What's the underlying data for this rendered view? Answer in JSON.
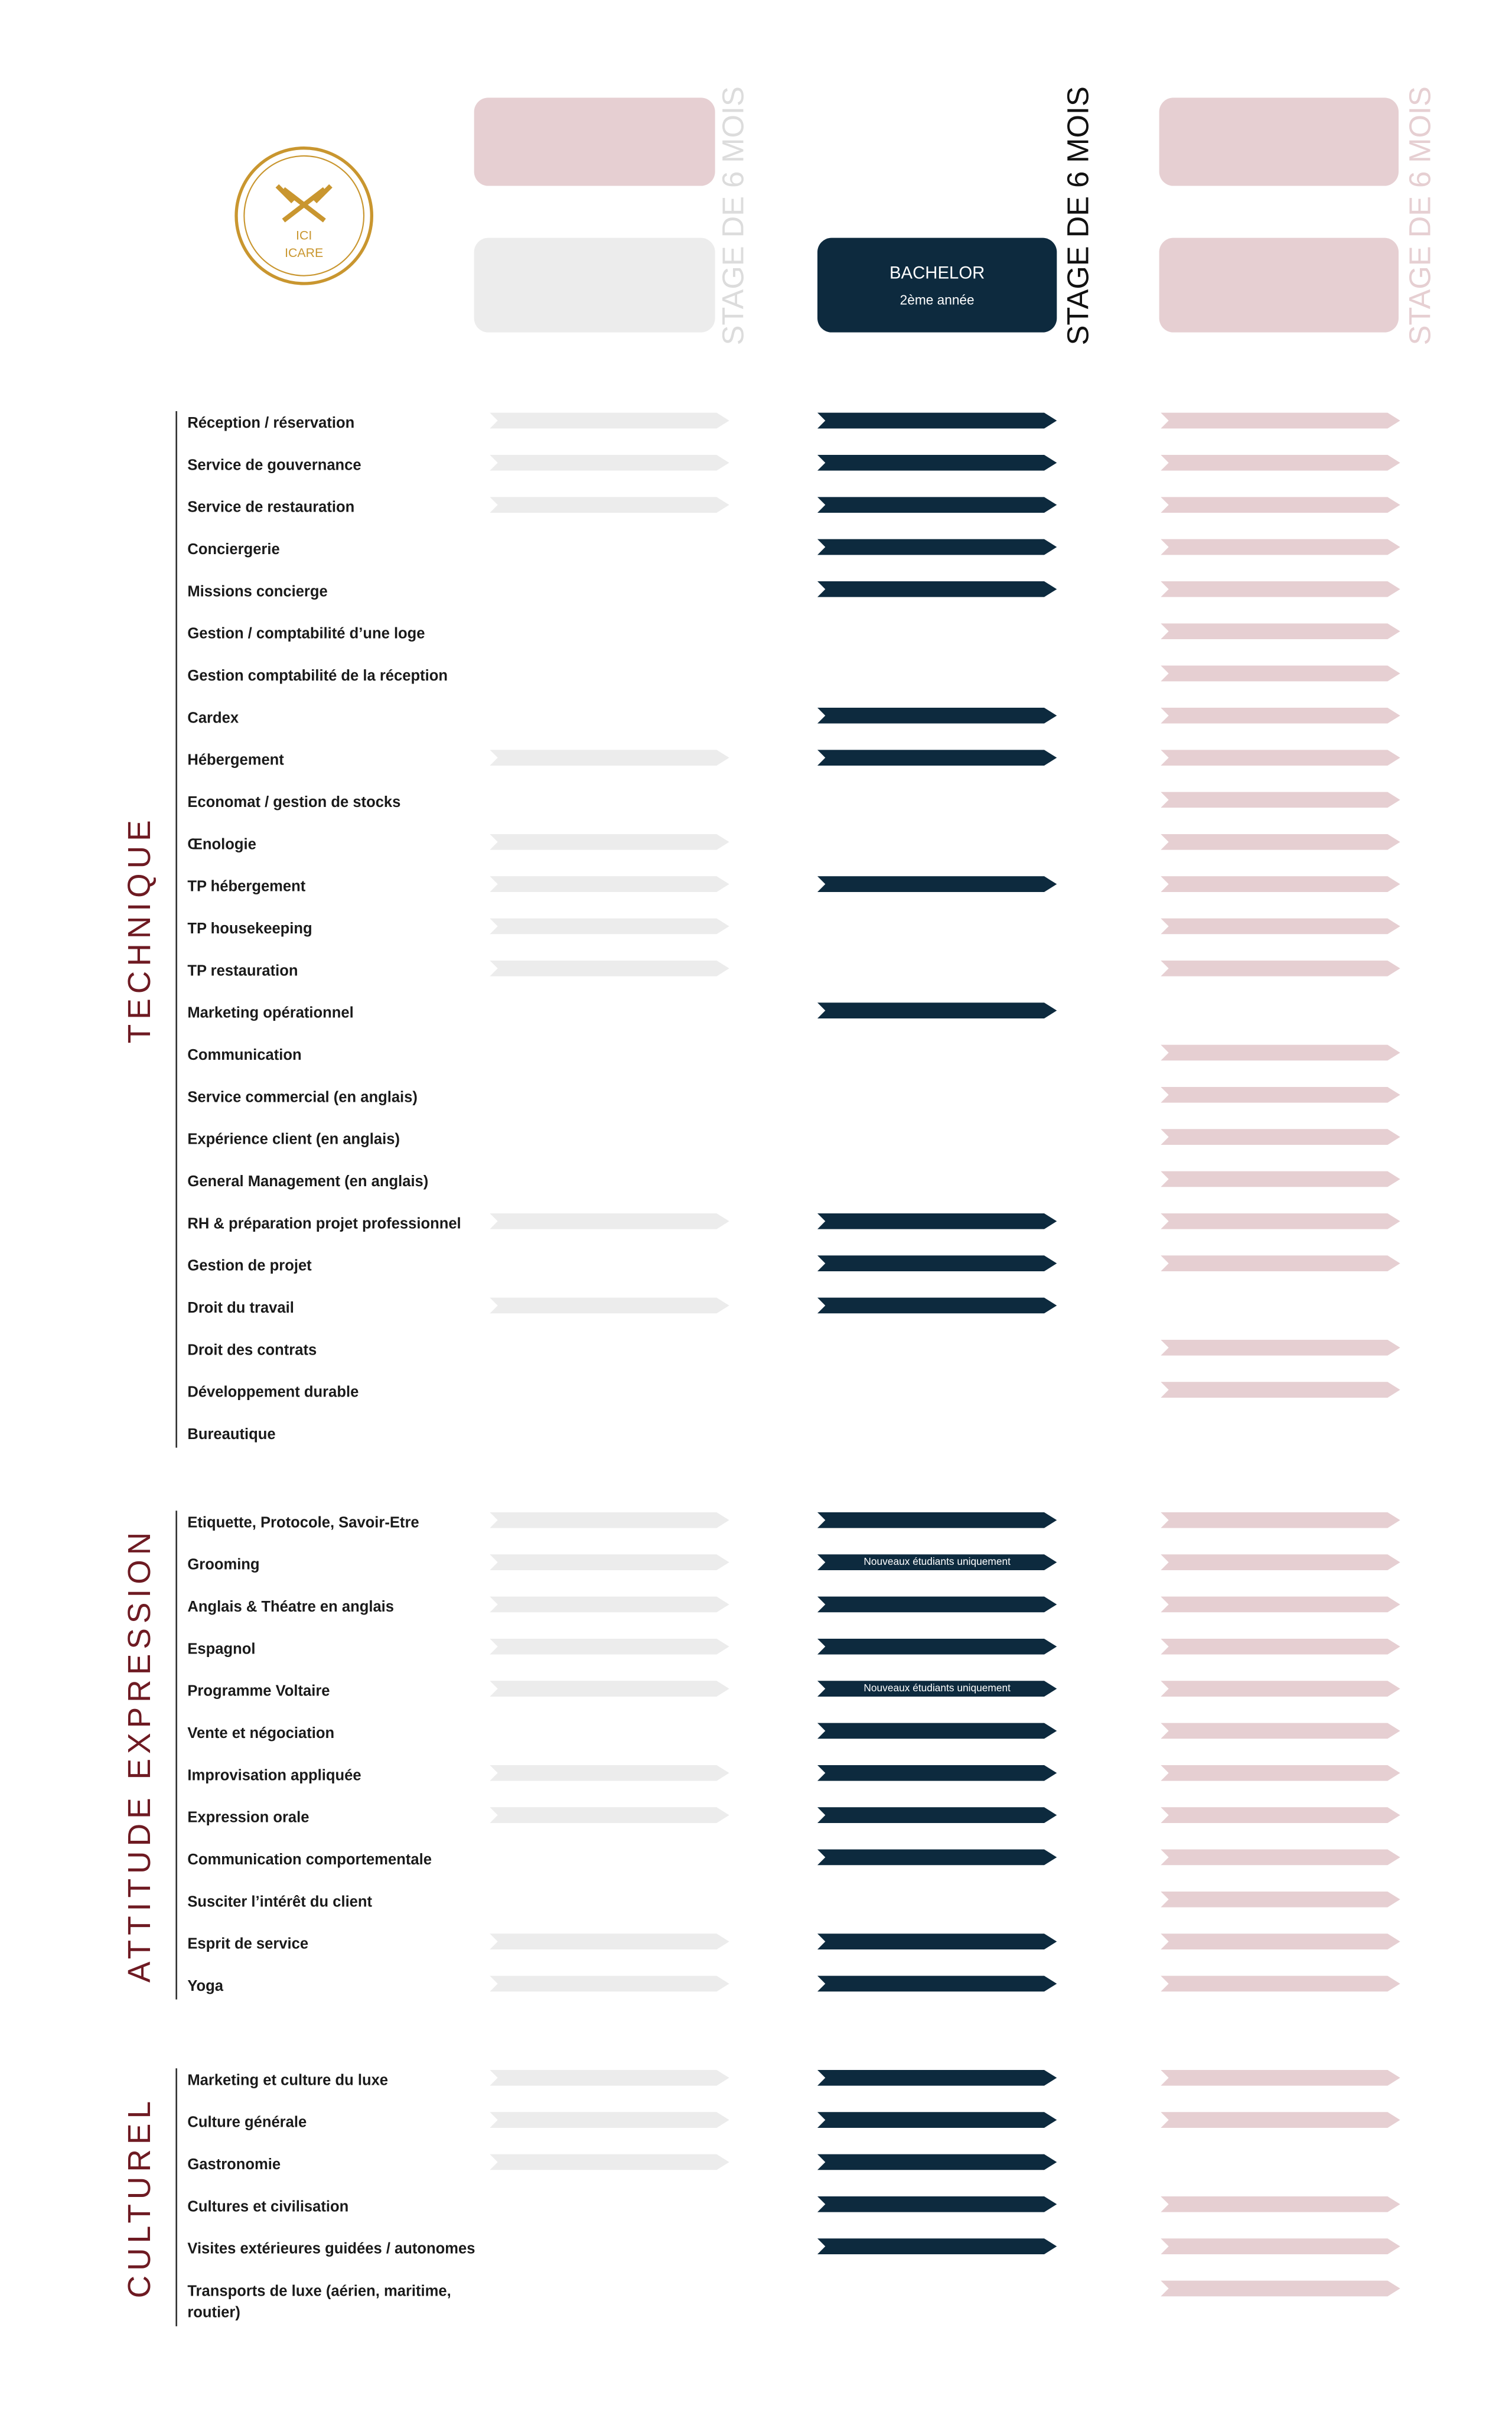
{
  "logo": [
    "ICI",
    "ICARE"
  ],
  "header": {
    "box_title": "BACHELOR",
    "box_subtitle": "2ème année",
    "stage": [
      "STAGE DE 6 MOIS",
      "STAGE DE 6 MOIS",
      "STAGE DE 6 MOIS"
    ]
  },
  "sections": [
    {
      "title": "TECHNIQUE",
      "rows": [
        {
          "label": "Réception / réservation",
          "cols": [
            true,
            true,
            true
          ]
        },
        {
          "label": "Service de gouvernance",
          "cols": [
            true,
            true,
            true
          ]
        },
        {
          "label": "Service de restauration",
          "cols": [
            true,
            true,
            true
          ]
        },
        {
          "label": "Conciergerie",
          "cols": [
            false,
            true,
            true
          ]
        },
        {
          "label": "Missions concierge",
          "cols": [
            false,
            true,
            true
          ]
        },
        {
          "label": "Gestion / comptabilité d’une loge",
          "cols": [
            false,
            false,
            true
          ]
        },
        {
          "label": "Gestion comptabilité de la réception",
          "cols": [
            false,
            false,
            true
          ]
        },
        {
          "label": "Cardex",
          "cols": [
            false,
            true,
            true
          ]
        },
        {
          "label": "Hébergement",
          "cols": [
            true,
            true,
            true
          ]
        },
        {
          "label": "Economat / gestion de stocks",
          "cols": [
            false,
            false,
            true
          ]
        },
        {
          "label": "Œnologie",
          "cols": [
            true,
            false,
            true
          ]
        },
        {
          "label": "TP hébergement",
          "cols": [
            true,
            true,
            true
          ]
        },
        {
          "label": "TP housekeeping",
          "cols": [
            true,
            false,
            true
          ]
        },
        {
          "label": "TP restauration",
          "cols": [
            true,
            false,
            true
          ]
        },
        {
          "label": "Marketing opérationnel",
          "cols": [
            false,
            true,
            false
          ]
        },
        {
          "label": "Communication",
          "cols": [
            false,
            false,
            true
          ]
        },
        {
          "label": "Service commercial (en anglais)",
          "cols": [
            false,
            false,
            true
          ]
        },
        {
          "label": "Expérience client (en anglais)",
          "cols": [
            false,
            false,
            true
          ]
        },
        {
          "label": "General Management (en anglais)",
          "cols": [
            false,
            false,
            true
          ]
        },
        {
          "label": "RH & préparation projet professionnel",
          "cols": [
            true,
            true,
            true
          ]
        },
        {
          "label": "Gestion de projet",
          "cols": [
            false,
            true,
            true
          ]
        },
        {
          "label": "Droit du travail",
          "cols": [
            true,
            true,
            false
          ]
        },
        {
          "label": "Droit des contrats",
          "cols": [
            false,
            false,
            true
          ]
        },
        {
          "label": "Développement durable",
          "cols": [
            false,
            false,
            true
          ]
        },
        {
          "label": "Bureautique",
          "cols": [
            false,
            false,
            false
          ]
        }
      ]
    },
    {
      "title": "ATTITUDE EXPRESSION",
      "rows": [
        {
          "label": "Etiquette, Protocole, Savoir-Etre",
          "cols": [
            true,
            true,
            true
          ]
        },
        {
          "label": "Grooming",
          "cols": [
            true,
            true,
            true
          ],
          "note": "Nouveaux étudiants uniquement"
        },
        {
          "label": "Anglais & Théatre en anglais",
          "cols": [
            true,
            true,
            true
          ]
        },
        {
          "label": "Espagnol",
          "cols": [
            true,
            true,
            true
          ]
        },
        {
          "label": "Programme Voltaire",
          "cols": [
            true,
            true,
            true
          ],
          "note": "Nouveaux étudiants uniquement"
        },
        {
          "label": "Vente et négociation",
          "cols": [
            false,
            true,
            true
          ]
        },
        {
          "label": "Improvisation appliquée",
          "cols": [
            true,
            true,
            true
          ]
        },
        {
          "label": "Expression orale",
          "cols": [
            true,
            true,
            true
          ]
        },
        {
          "label": "Communication comportementale",
          "cols": [
            false,
            true,
            true
          ]
        },
        {
          "label": "Susciter l’intérêt du client",
          "cols": [
            false,
            false,
            true
          ]
        },
        {
          "label": "Esprit de service",
          "cols": [
            true,
            true,
            true
          ]
        },
        {
          "label": "Yoga",
          "cols": [
            true,
            true,
            true
          ]
        }
      ]
    },
    {
      "title": "CULTUREL",
      "rows": [
        {
          "label": "Marketing et culture du luxe",
          "cols": [
            true,
            true,
            true
          ]
        },
        {
          "label": "Culture générale",
          "cols": [
            true,
            true,
            true
          ]
        },
        {
          "label": "Gastronomie",
          "cols": [
            true,
            true,
            false
          ]
        },
        {
          "label": "Cultures et civilisation",
          "cols": [
            false,
            true,
            true
          ]
        },
        {
          "label": "Visites extérieures guidées / autonomes",
          "cols": [
            false,
            true,
            true
          ]
        },
        {
          "label": "Transports de luxe (aérien, maritime, routier)",
          "cols": [
            false,
            false,
            true
          ]
        }
      ]
    }
  ]
}
